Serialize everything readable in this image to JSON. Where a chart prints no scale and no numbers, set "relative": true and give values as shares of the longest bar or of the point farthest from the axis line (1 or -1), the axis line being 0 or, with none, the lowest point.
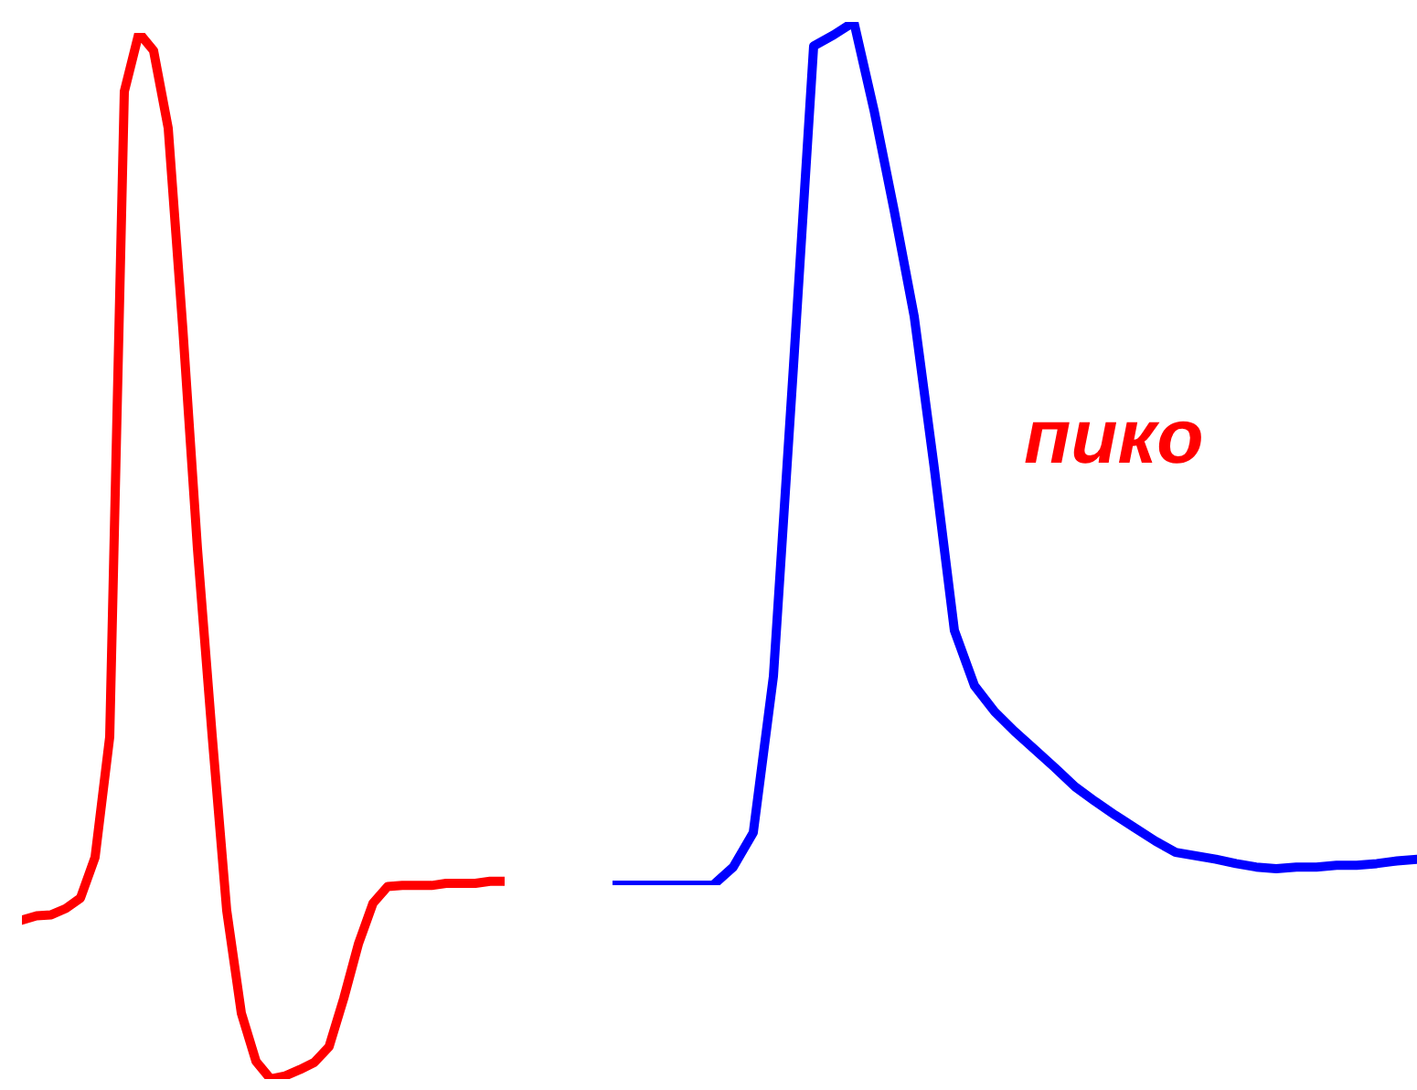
{
  "chart_data": [
    {
      "type": "line",
      "relative": true,
      "marker": "none",
      "line_style": "solid",
      "categories": [
        null,
        null,
        null,
        null,
        null,
        null,
        null,
        null,
        null,
        null,
        null,
        null,
        null,
        null,
        null,
        null,
        null,
        null,
        null,
        null,
        null,
        null,
        null,
        null,
        null,
        null,
        null,
        null,
        null,
        null,
        null,
        null,
        null,
        null
      ],
      "series": [
        {
          "color": "#ff0000",
          "values": [
            0.152,
            0.156,
            0.157,
            0.163,
            0.173,
            0.212,
            0.327,
            0.944,
            1,
            0.983,
            0.909,
            0.717,
            0.507,
            0.329,
            0.161,
            0.063,
            0.017,
            0,
            0.003,
            0.009,
            0.016,
            0.031,
            0.077,
            0.129,
            0.168,
            0.184,
            0.185,
            0.185,
            0.185,
            0.187,
            0.187,
            0.187,
            0.189,
            0.189
          ]
        }
      ]
    },
    {
      "type": "line",
      "relative": true,
      "marker": "none",
      "line_style": "solid",
      "annotations": [
        "пико"
      ],
      "categories": [
        null,
        null,
        null,
        null,
        null,
        null,
        null,
        null,
        null,
        null,
        null,
        null,
        null,
        null,
        null,
        null,
        null,
        null,
        null,
        null,
        null,
        null,
        null,
        null,
        null,
        null,
        null,
        null,
        null,
        null,
        null,
        null,
        null,
        null,
        null,
        null,
        null,
        null,
        null,
        null,
        null
      ],
      "series": [
        {
          "color": "#0000ff",
          "values": [
            0,
            0,
            0,
            0,
            0,
            0,
            0.021,
            0.061,
            0.242,
            0.602,
            0.972,
            0.985,
            1,
            0.898,
            0.782,
            0.659,
            0.483,
            0.295,
            0.231,
            0.201,
            0.178,
            0.157,
            0.136,
            0.114,
            0.097,
            0.081,
            0.066,
            0.051,
            0.038,
            0.034,
            0.03,
            0.025,
            0.021,
            0.019,
            0.021,
            0.021,
            0.023,
            0.023,
            0.025,
            0.028,
            0.03
          ]
        }
      ]
    }
  ]
}
